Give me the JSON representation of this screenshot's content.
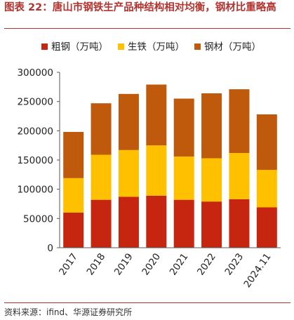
{
  "header": {
    "title": "图表 22：唐山市钢铁生产品种结构相对均衡，钢材比重略高"
  },
  "footer": {
    "source": "资料来源：ifind、华源证券研究所"
  },
  "colors": {
    "title": "#b4332f",
    "rule": "#b4332f"
  },
  "chart_data": {
    "type": "bar",
    "stacked": true,
    "categories": [
      "2017",
      "2018",
      "2019",
      "2020",
      "2021",
      "2022",
      "2023",
      "2024.11"
    ],
    "series": [
      {
        "name": "粗钢（万吨）",
        "color": "#c6260f",
        "values": [
          60000,
          82000,
          87000,
          89000,
          82000,
          79000,
          83000,
          69000
        ]
      },
      {
        "name": "生铁（万吨）",
        "color": "#ffc000",
        "values": [
          59000,
          77000,
          80000,
          86000,
          74000,
          74000,
          79000,
          64000
        ]
      },
      {
        "name": "钢材（万吨）",
        "color": "#bf5a0c",
        "values": [
          79000,
          88000,
          96000,
          104000,
          99000,
          111000,
          109000,
          95000
        ]
      }
    ],
    "yticks": [
      "0",
      "50000",
      "100000",
      "150000",
      "200000",
      "250000",
      "300000"
    ],
    "ylim": [
      0,
      300000
    ],
    "legend_position": "top",
    "grid": false
  }
}
